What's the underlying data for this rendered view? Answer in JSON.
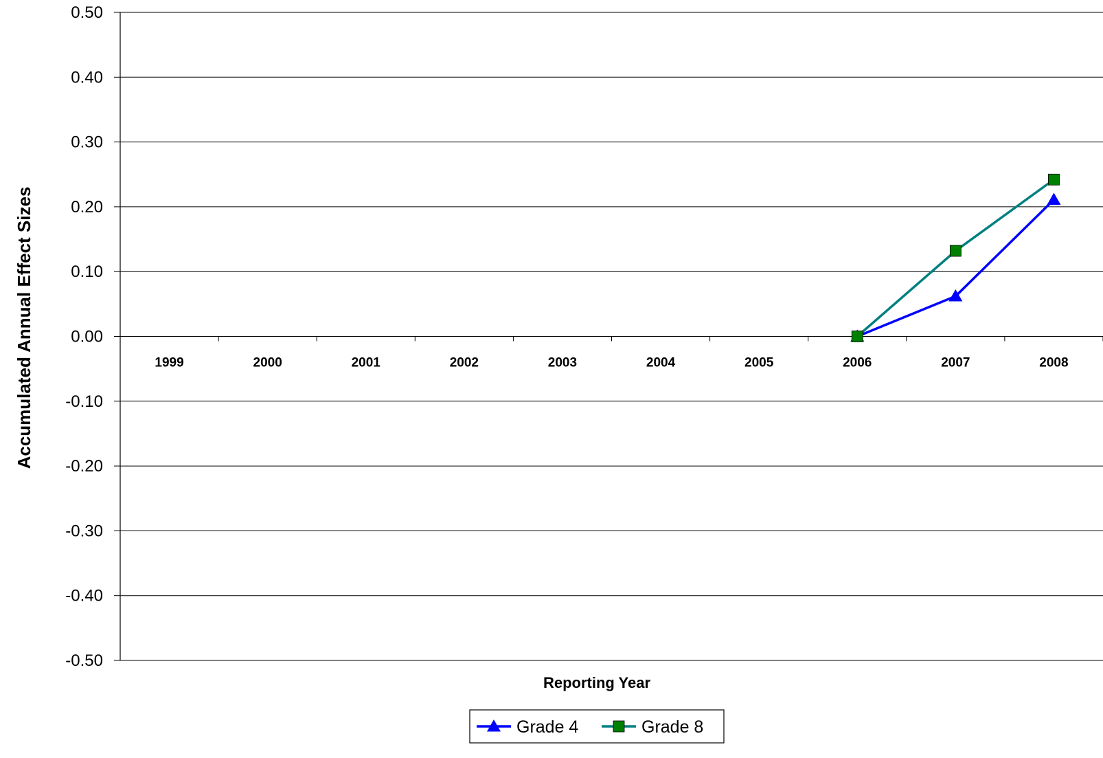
{
  "chart_data": {
    "type": "line",
    "title": "",
    "xlabel": "Reporting Year",
    "ylabel": "Accumulated Annual Effect Sizes",
    "categories": [
      "1999",
      "2000",
      "2001",
      "2002",
      "2003",
      "2004",
      "2005",
      "2006",
      "2007",
      "2008"
    ],
    "ylim": [
      -0.5,
      0.5
    ],
    "yticks": [
      "0.50",
      "0.40",
      "0.30",
      "0.20",
      "0.10",
      "0.00",
      "-0.10",
      "-0.20",
      "-0.30",
      "-0.40",
      "-0.50"
    ],
    "ytick_values": [
      0.5,
      0.4,
      0.3,
      0.2,
      0.1,
      0.0,
      -0.1,
      -0.2,
      -0.3,
      -0.4,
      -0.5
    ],
    "grid": "horizontal",
    "legend_position": "bottom",
    "series": [
      {
        "name": "Grade 4",
        "color": "#0000FF",
        "marker": "triangle",
        "values": [
          null,
          null,
          null,
          null,
          null,
          null,
          null,
          0.0,
          0.062,
          0.211
        ]
      },
      {
        "name": "Grade 8",
        "color": "#008080",
        "marker_color": "#008000",
        "marker": "square",
        "values": [
          null,
          null,
          null,
          null,
          null,
          null,
          null,
          0.0,
          0.132,
          0.242
        ]
      }
    ]
  }
}
